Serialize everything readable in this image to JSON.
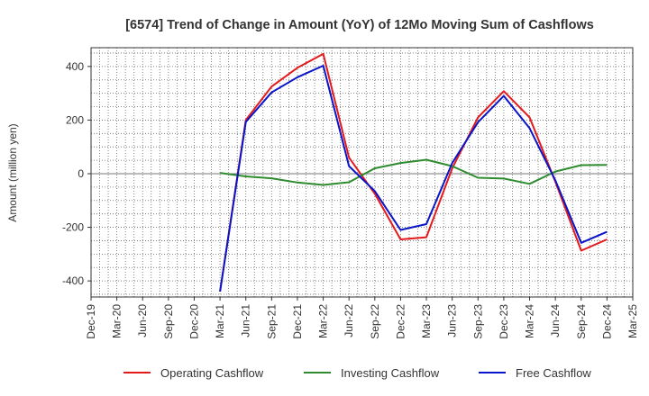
{
  "chart_data": {
    "type": "line",
    "title": "[6574]  Trend of Change in Amount (YoY) of 12Mo Moving Sum of Cashflows",
    "xlabel": "",
    "ylabel": "Amount (million yen)",
    "ylim": [
      -460,
      470
    ],
    "yticks": [
      400,
      200,
      0,
      -200,
      -400
    ],
    "ytick_labels": [
      "400",
      "200",
      "0",
      "-200",
      "-400"
    ],
    "grid": true,
    "legend_position": "bottom",
    "categories": [
      "Dec-19",
      "Mar-20",
      "Jun-20",
      "Sep-20",
      "Dec-20",
      "Mar-21",
      "Jun-21",
      "Sep-21",
      "Dec-21",
      "Mar-22",
      "Jun-22",
      "Sep-22",
      "Dec-22",
      "Mar-23",
      "Jun-23",
      "Sep-23",
      "Dec-23",
      "Mar-24",
      "Jun-24",
      "Sep-24",
      "Dec-24",
      "Mar-25"
    ],
    "series": [
      {
        "name": "Operating Cashflow",
        "color": "#e31a1c",
        "values": [
          null,
          null,
          null,
          null,
          null,
          -440,
          200,
          325,
          395,
          447,
          60,
          -75,
          -245,
          -237,
          20,
          210,
          308,
          210,
          -30,
          -287,
          -245,
          null
        ]
      },
      {
        "name": "Investing Cashflow",
        "color": "#2e8b2e",
        "values": [
          null,
          null,
          null,
          null,
          null,
          3,
          -10,
          -17,
          -33,
          -42,
          -32,
          20,
          40,
          52,
          28,
          -15,
          -18,
          -38,
          8,
          32,
          33,
          null
        ]
      },
      {
        "name": "Free Cashflow",
        "color": "#0a14c8",
        "values": [
          null,
          null,
          null,
          null,
          null,
          -440,
          193,
          303,
          360,
          403,
          28,
          -65,
          -210,
          -188,
          40,
          192,
          290,
          170,
          -25,
          -258,
          -217,
          null
        ]
      }
    ]
  }
}
